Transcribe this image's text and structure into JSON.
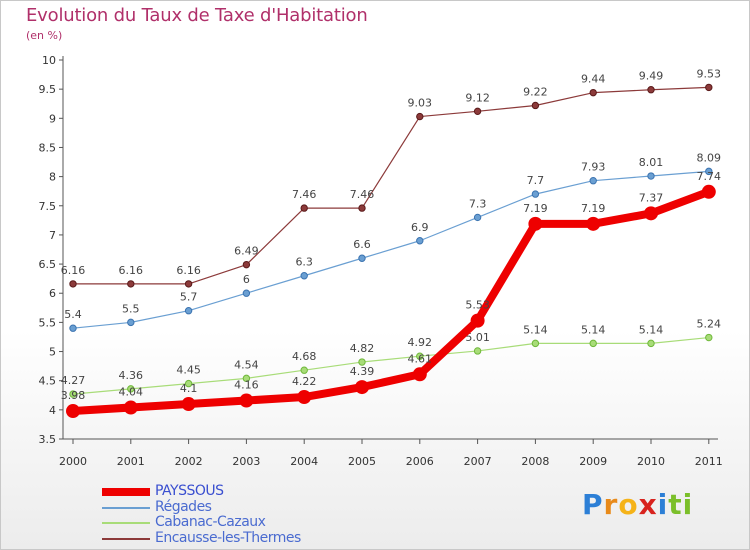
{
  "title": "Evolution du Taux de Taxe d'Habitation",
  "unit_label": "(en %)",
  "brand": {
    "letters": [
      "P",
      "r",
      "o",
      "x",
      "i",
      "t",
      "i"
    ],
    "colors": [
      "#2c7fd6",
      "#e88a1a",
      "#f5b318",
      "#d8231e",
      "#2c7fd6",
      "#7bbf2a",
      "#7bbf2a"
    ]
  },
  "chart_data": {
    "type": "line",
    "title": "Evolution du Taux de Taxe d'Habitation",
    "ylabel": "(en %)",
    "xlabel": "",
    "x": [
      "2000",
      "2001",
      "2002",
      "2003",
      "2004",
      "2005",
      "2006",
      "2007",
      "2008",
      "2009",
      "2010",
      "2011"
    ],
    "ylim": [
      3.5,
      10
    ],
    "yticks": [
      "3.5",
      "4",
      "4.5",
      "5",
      "5.5",
      "6",
      "6.5",
      "7",
      "7.5",
      "8",
      "8.5",
      "9",
      "9.5",
      "10"
    ],
    "grid": false,
    "legend_position": "bottom-left",
    "series": [
      {
        "name": "PAYSSOUS",
        "color": "#ee0000",
        "values": [
          3.98,
          4.04,
          4.1,
          4.16,
          4.22,
          4.39,
          4.61,
          5.53,
          7.19,
          7.19,
          7.37,
          7.74
        ],
        "labels": [
          "3.98",
          "4.04",
          "4.1",
          "4.16",
          "4.22",
          "4.39",
          "4.61",
          "5.53",
          "7.19",
          "7.19",
          "7.37",
          "7.74"
        ]
      },
      {
        "name": "Régades",
        "color": "#6a9fd2",
        "values": [
          5.4,
          5.5,
          5.7,
          6,
          6.3,
          6.6,
          6.9,
          7.3,
          7.7,
          7.93,
          8.01,
          8.09
        ],
        "labels": [
          "5.4",
          "5.5",
          "5.7",
          "6",
          "6.3",
          "6.6",
          "6.9",
          "7.3",
          "7.7",
          "7.93",
          "8.01",
          "8.09"
        ]
      },
      {
        "name": "Cabanac-Cazaux",
        "color": "#a8dc78",
        "values": [
          4.27,
          4.36,
          4.45,
          4.54,
          4.68,
          4.82,
          4.92,
          5.01,
          5.14,
          5.14,
          5.14,
          5.24
        ],
        "labels": [
          "4.27",
          "4.36",
          "4.45",
          "4.54",
          "4.68",
          "4.82",
          "4.92",
          "5.01",
          "5.14",
          "5.14",
          "5.14",
          "5.24"
        ]
      },
      {
        "name": "Encausse-les-Thermes",
        "color": "#8c3a3a",
        "values": [
          6.16,
          6.16,
          6.16,
          6.49,
          7.46,
          7.46,
          9.03,
          9.12,
          9.22,
          9.44,
          9.49,
          9.53
        ],
        "labels": [
          "6.16",
          "6.16",
          "6.16",
          "6.49",
          "7.46",
          "7.46",
          "9.03",
          "9.12",
          "9.22",
          "9.44",
          "9.49",
          "9.53"
        ]
      }
    ]
  }
}
